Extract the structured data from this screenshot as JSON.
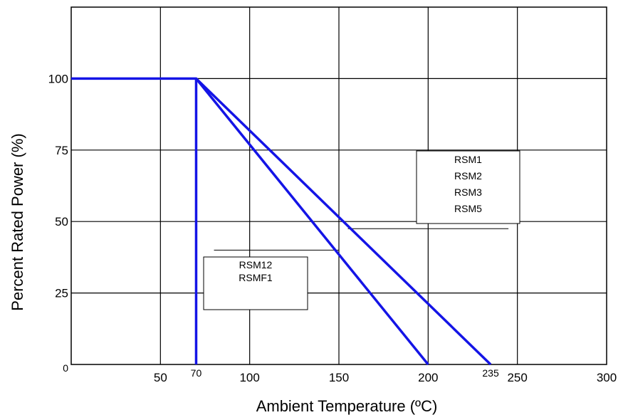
{
  "chart_data": {
    "type": "line",
    "title": "",
    "xlabel": "Ambient Temperature (ºC)",
    "ylabel": "Percent Rated Power (%)",
    "xlim": [
      0,
      300
    ],
    "ylim": [
      0,
      125
    ],
    "grid": true,
    "x_ticks": [
      {
        "value": 50,
        "label": "50"
      },
      {
        "value": 70,
        "label": "70",
        "raised": true
      },
      {
        "value": 100,
        "label": "100"
      },
      {
        "value": 150,
        "label": "150"
      },
      {
        "value": 200,
        "label": "200"
      },
      {
        "value": 235,
        "label": "235",
        "raised": true
      },
      {
        "value": 250,
        "label": "250"
      },
      {
        "value": 300,
        "label": "300"
      }
    ],
    "y_ticks": [
      {
        "value": 0,
        "label": "0"
      },
      {
        "value": 25,
        "label": "25"
      },
      {
        "value": 50,
        "label": "50"
      },
      {
        "value": 75,
        "label": "75"
      },
      {
        "value": 100,
        "label": "100"
      }
    ],
    "series": [
      {
        "points": [
          [
            0,
            100
          ],
          [
            70,
            100
          ],
          [
            235,
            0
          ]
        ],
        "color": "#1414e6"
      },
      {
        "points": [
          [
            70,
            100
          ],
          [
            200,
            0
          ]
        ],
        "color": "#1414e6"
      },
      {
        "points": [
          [
            70,
            100
          ],
          [
            70,
            0
          ]
        ],
        "color": "#1414e6"
      }
    ],
    "annotations": [
      {
        "lines": [
          "RSM1",
          "RSM2",
          "RSM3",
          "RSM5"
        ],
        "leader": [
          [
            245,
            47.5
          ],
          [
            155,
            47.5
          ]
        ]
      },
      {
        "lines": [
          "RSM12",
          "RSMF1"
        ],
        "leader": [
          [
            150,
            40
          ],
          [
            80,
            40
          ]
        ]
      }
    ]
  }
}
